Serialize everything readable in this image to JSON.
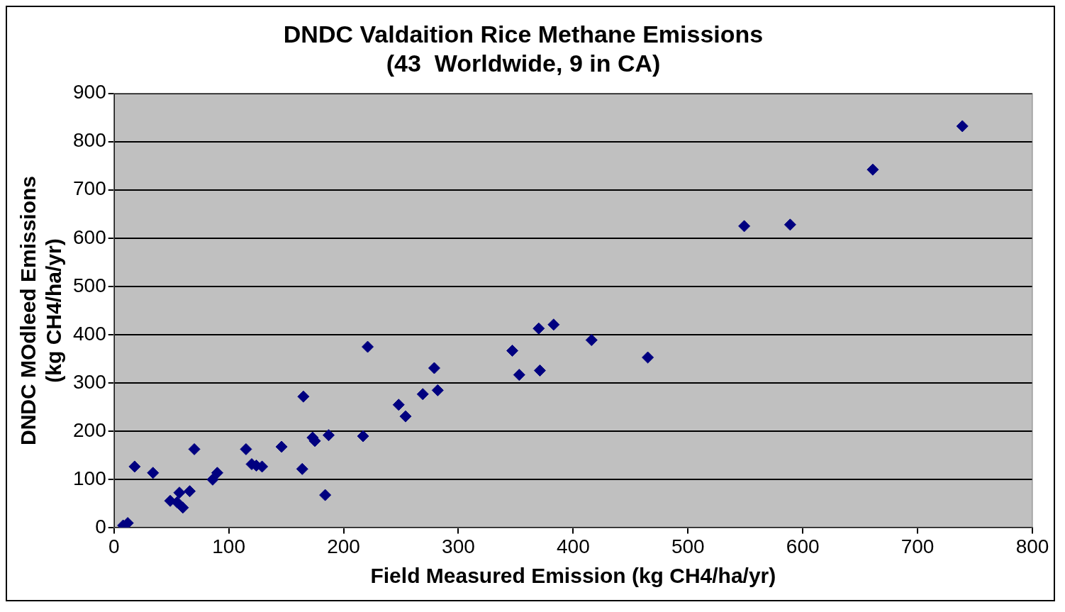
{
  "chart_data": {
    "type": "scatter",
    "title": "DNDC Valdaition Rice Methane Emissions\n(43  Worldwide, 9 in CA)",
    "xlabel": "Field Measured Emission (kg CH4/ha/yr)",
    "ylabel": "DNDC MOdleed Emissions\n(kg CH4/ha/yr)",
    "series": [
      {
        "color": "#000080",
        "x": [
          8,
          12,
          18,
          34,
          49,
          55,
          57,
          60,
          66,
          70,
          86,
          90,
          115,
          120,
          124,
          129,
          146,
          164,
          165,
          173,
          175,
          184,
          187,
          217,
          221,
          248,
          254,
          269,
          279,
          282,
          347,
          353,
          370,
          371,
          383,
          416,
          465,
          549,
          589,
          661,
          739
        ],
        "values": [
          5,
          10,
          127,
          114,
          56,
          53,
          73,
          42,
          76,
          163,
          100,
          114,
          163,
          132,
          129,
          127,
          168,
          122,
          272,
          187,
          180,
          68,
          192,
          190,
          375,
          255,
          231,
          277,
          331,
          285,
          367,
          317,
          413,
          326,
          421,
          389,
          353,
          625,
          628,
          742,
          832
        ]
      }
    ],
    "xlim": [
      0,
      800
    ],
    "xticks": [
      0,
      100,
      200,
      300,
      400,
      500,
      600,
      700,
      800
    ],
    "ylim": [
      0,
      900
    ],
    "yticks": [
      0,
      100,
      200,
      300,
      400,
      500,
      600,
      700,
      800,
      900
    ],
    "grid": "y",
    "legend": false,
    "marker": "diamond"
  }
}
